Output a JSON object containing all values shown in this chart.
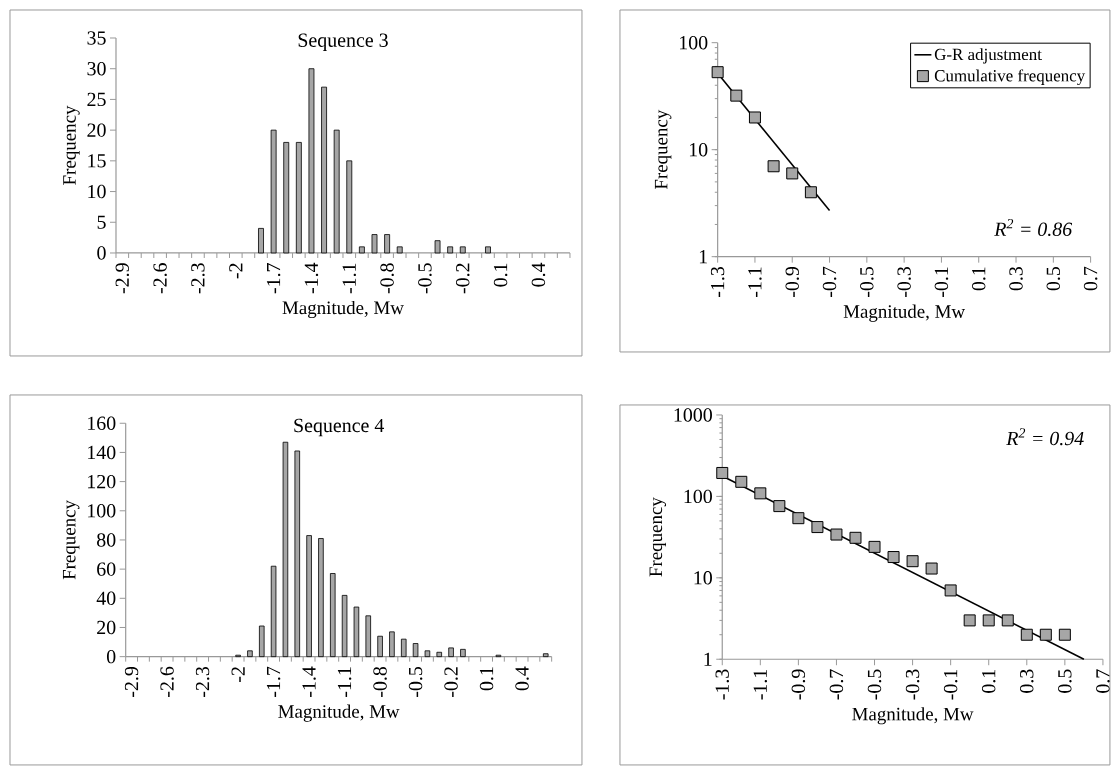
{
  "chart_data": [
    {
      "type": "bar",
      "title": "Sequence 3",
      "xlabel": "Magnitude, Mw",
      "ylabel": "Frequency",
      "color": "#a6a6a6",
      "categories": [
        "-2.9",
        null,
        null,
        "-2.6",
        null,
        null,
        "-2.3",
        null,
        null,
        "-2",
        null,
        null,
        "-1.7",
        null,
        null,
        "-1.4",
        null,
        null,
        "-1.1",
        null,
        null,
        "-0.8",
        null,
        null,
        "-0.5",
        null,
        null,
        "-0.2",
        null,
        null,
        "0.1",
        null,
        null,
        "0.4",
        null,
        null
      ],
      "values": [
        0,
        0,
        0,
        0,
        0,
        0,
        0,
        0,
        0,
        0,
        0,
        4,
        20,
        18,
        18,
        30,
        27,
        20,
        15,
        1,
        3,
        3,
        1,
        0,
        0,
        2,
        1,
        1,
        0,
        1,
        0,
        0,
        0,
        0,
        0,
        0
      ],
      "ylim": [
        0,
        35
      ],
      "yticks": [
        0,
        5,
        10,
        15,
        20,
        25,
        30,
        35
      ]
    },
    {
      "type": "scatter",
      "xlabel": "Magnitude, Mw",
      "ylabel": "Frequency",
      "log": "y",
      "legend": "top right",
      "series": [
        {
          "name": "G-R adjustment",
          "type": "line",
          "color": "#000000",
          "x": [
            -1.3,
            -0.7
          ],
          "values": [
            51.7,
            2.7
          ]
        },
        {
          "name": "Cumulative frequency",
          "type": "scatter",
          "marker": "square",
          "color": "#a6a6a6",
          "x": [
            -1.3,
            -1.2,
            -1.1,
            -1.0,
            -0.9,
            -0.8
          ],
          "values": [
            53,
            32,
            20,
            7,
            6,
            4
          ]
        }
      ],
      "xlim": [
        -1.3,
        0.7
      ],
      "xticks": [
        -1.3,
        -1.1,
        -0.9,
        -0.7,
        -0.5,
        -0.3,
        -0.1,
        0.1,
        0.3,
        0.5,
        0.7
      ],
      "ylim": [
        1,
        100
      ],
      "yticks": [
        1,
        10,
        100
      ],
      "annotations": [
        "R$^{2}$ = 0.86"
      ]
    },
    {
      "type": "bar",
      "title": "Sequence 4",
      "xlabel": "Magnitude, Mw",
      "ylabel": "Frequency",
      "color": "#a6a6a6",
      "categories": [
        "-2.9",
        null,
        null,
        "-2.6",
        null,
        null,
        "-2.3",
        null,
        null,
        "-2",
        null,
        null,
        "-1.7",
        null,
        null,
        "-1.4",
        null,
        null,
        "-1.1",
        null,
        null,
        "-0.8",
        null,
        null,
        "-0.5",
        null,
        null,
        "-0.2",
        null,
        null,
        "0.1",
        null,
        null,
        "0.4",
        null,
        null
      ],
      "values": [
        0,
        0,
        0,
        0,
        0,
        0,
        0,
        0,
        0,
        1,
        4,
        21,
        62,
        147,
        141,
        83,
        81,
        57,
        42,
        34,
        28,
        14,
        17,
        12,
        9,
        4,
        3,
        6,
        5,
        0,
        0,
        1,
        0,
        0,
        0,
        2
      ],
      "ylim": [
        0,
        160
      ],
      "yticks": [
        0,
        20,
        40,
        60,
        80,
        100,
        120,
        140,
        160
      ]
    },
    {
      "type": "scatter",
      "xlabel": "Magnitude, Mw",
      "ylabel": "Frequency",
      "log": "y",
      "series": [
        {
          "type": "line",
          "color": "#000000",
          "x": [
            -1.3,
            0.6
          ],
          "values": [
            178,
            1
          ]
        },
        {
          "type": "scatter",
          "marker": "square",
          "color": "#a6a6a6",
          "x": [
            -1.3,
            -1.2,
            -1.1,
            -1.0,
            -0.9,
            -0.8,
            -0.7,
            -0.6,
            -0.5,
            -0.4,
            -0.3,
            -0.2,
            -0.1,
            0.0,
            0.1,
            0.2,
            0.3,
            0.4,
            0.5
          ],
          "values": [
            194,
            151,
            109,
            76,
            54,
            42,
            34,
            31,
            24,
            18,
            16,
            13,
            7,
            3,
            3,
            3,
            2,
            2,
            2
          ]
        }
      ],
      "xlim": [
        -1.3,
        0.7
      ],
      "xticks": [
        -1.3,
        -1.1,
        -0.9,
        -0.7,
        -0.5,
        -0.3,
        -0.1,
        0.1,
        0.3,
        0.5,
        0.7
      ],
      "ylim": [
        1,
        1000
      ],
      "yticks": [
        1,
        10,
        100,
        1000
      ],
      "annotations": [
        "R$^{2}$ = 0.94"
      ]
    }
  ]
}
